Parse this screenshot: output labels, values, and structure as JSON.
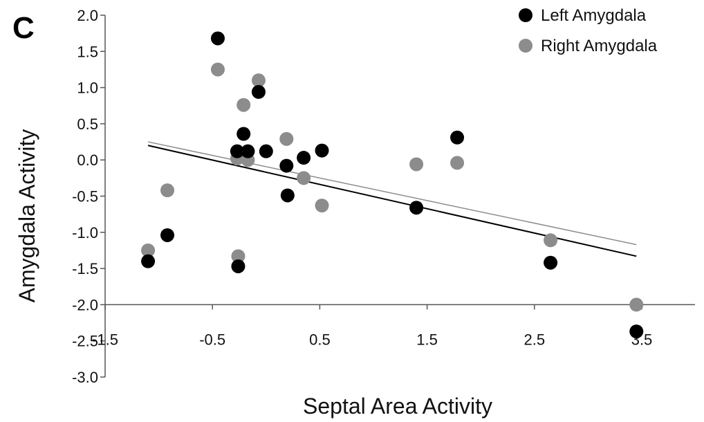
{
  "panel_label": "C",
  "chart_data": {
    "type": "scatter",
    "xlabel": "Septal Area Activity",
    "ylabel": "Amygdala Activity",
    "xlim": [
      -1.5,
      3.9
    ],
    "ylim": [
      -3.0,
      2.0
    ],
    "x_axis_crosses_y_at": -2.0,
    "x_ticks": [
      -1.5,
      -0.5,
      0.5,
      1.5,
      2.5,
      3.5
    ],
    "x_tick_labels": [
      "-1.5",
      "-0.5",
      "0.5",
      "1.5",
      "2.5",
      "3.5"
    ],
    "y_ticks": [
      2.0,
      1.5,
      1.0,
      0.5,
      0.0,
      -0.5,
      -1.0,
      -1.5,
      -2.0,
      -2.5,
      -3.0
    ],
    "y_tick_labels": [
      "2.0",
      "1.5",
      "1.0",
      "0.5",
      "0.0",
      "-0.5",
      "-1.0",
      "-1.5",
      "-2.0",
      "-2.5",
      "-3.0"
    ],
    "grid": false,
    "legend_position": "top-right",
    "series": [
      {
        "name": "Left Amygdala",
        "color": "#000000",
        "points": [
          [
            -1.1,
            -1.4
          ],
          [
            -0.92,
            -1.04
          ],
          [
            -0.45,
            1.68
          ],
          [
            -0.27,
            0.12
          ],
          [
            -0.26,
            -1.47
          ],
          [
            -0.21,
            0.36
          ],
          [
            -0.17,
            0.12
          ],
          [
            -0.07,
            0.94
          ],
          [
            0.0,
            0.12
          ],
          [
            0.19,
            -0.08
          ],
          [
            0.2,
            -0.49
          ],
          [
            0.35,
            0.03
          ],
          [
            0.52,
            0.13
          ],
          [
            1.4,
            -0.66
          ],
          [
            1.78,
            0.31
          ],
          [
            2.65,
            -1.42
          ],
          [
            3.45,
            -2.37
          ]
        ],
        "trendline": {
          "x": [
            -1.1,
            3.45
          ],
          "y": [
            0.2,
            -1.33
          ]
        }
      },
      {
        "name": "Right Amygdala",
        "color": "#8c8c8c",
        "points": [
          [
            -1.1,
            -1.25
          ],
          [
            -0.92,
            -0.42
          ],
          [
            -0.45,
            1.25
          ],
          [
            -0.27,
            0.02
          ],
          [
            -0.26,
            -1.33
          ],
          [
            -0.21,
            0.76
          ],
          [
            -0.17,
            0.0
          ],
          [
            -0.07,
            1.1
          ],
          [
            0.19,
            0.29
          ],
          [
            0.35,
            -0.25
          ],
          [
            0.52,
            -0.63
          ],
          [
            1.4,
            -0.06
          ],
          [
            1.78,
            -0.04
          ],
          [
            2.65,
            -1.11
          ],
          [
            3.45,
            -2.0
          ]
        ],
        "trendline": {
          "x": [
            -1.1,
            3.45
          ],
          "y": [
            0.25,
            -1.17
          ]
        }
      }
    ]
  }
}
